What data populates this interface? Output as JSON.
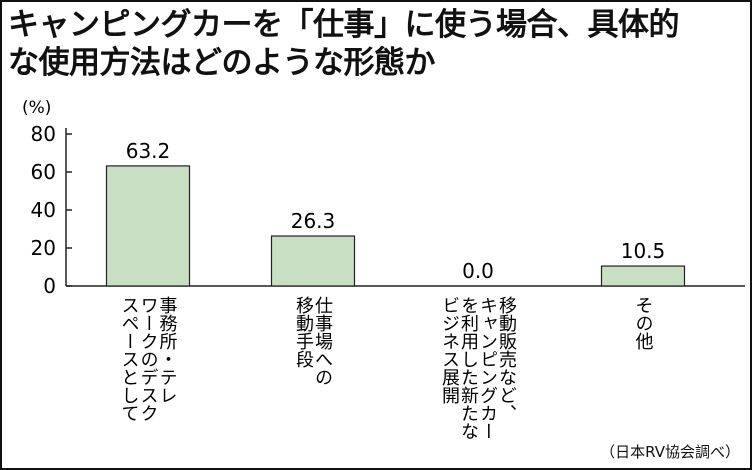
{
  "title_line1": "キャンピングカーを「仕事」に使う場合、具体的",
  "title_line2": "な使用方法はどのような形態か",
  "source": "（日本RV協会調べ）",
  "colors": {
    "bar_fill": "#c9dfc4",
    "bar_stroke": "#222222",
    "axis": "#222222"
  },
  "chart_data": {
    "type": "bar",
    "title": "キャンピングカーを「仕事」に使う場合、具体的な使用方法はどのような形態か",
    "ylabel": "(%)",
    "xlabel": "",
    "ylim": [
      0,
      80
    ],
    "yticks": [
      0,
      20,
      40,
      60,
      80
    ],
    "grid": false,
    "categories": [
      [
        "事務所・テレ",
        "ワークのデスク",
        "スペースとして"
      ],
      [
        "仕事場への",
        "移動手段"
      ],
      [
        "移動販売など、",
        "キャンピングカー",
        "を利用した新たな",
        "ビジネス展開"
      ],
      [
        "その他"
      ]
    ],
    "values": [
      63.2,
      26.3,
      0.0,
      10.5
    ],
    "value_labels": [
      "63.2",
      "26.3",
      "0.0",
      "10.5"
    ]
  }
}
